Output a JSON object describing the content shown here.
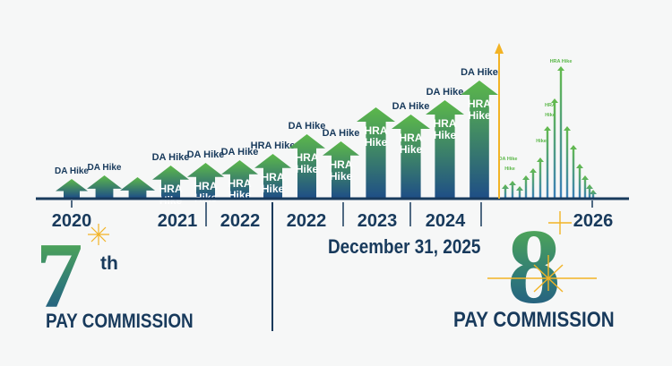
{
  "colors": {
    "navy": "#183a5c",
    "green": "#5cb84a",
    "blue": "#1f4f86",
    "gold": "#f2b325"
  },
  "arrows": [
    {
      "above": "DA Hike",
      "inside": ""
    },
    {
      "above": "DA Hike",
      "inside": ""
    },
    {
      "above": "",
      "inside": ""
    },
    {
      "above": "DA Hike",
      "inside": "HRA Hike"
    },
    {
      "above": "DA Hike",
      "inside": "HRA Hike"
    },
    {
      "above": "DA Hike",
      "inside": "HRA Hike"
    },
    {
      "above": "HRA Hike",
      "inside": "HRA Hike"
    },
    {
      "above": "DA Hike",
      "inside": "HRA Hike"
    },
    {
      "above": "DA Hike",
      "inside": "HRA Hike"
    },
    {
      "above": "",
      "inside": "HRA Hike"
    },
    {
      "above": "DA Hike",
      "inside": "HRA Hike"
    },
    {
      "above": "DA Hike",
      "inside": "HRA Hike"
    },
    {
      "above": "DA Hike",
      "inside": "HRA Hike"
    }
  ],
  "small_labels": [
    "HRA Hike",
    "HRA",
    "Hike",
    "Hike",
    "DA Hike",
    "Hike"
  ],
  "years": [
    "2020",
    "2021",
    "2022",
    "2022",
    "2023",
    "2024",
    "2026"
  ],
  "left": {
    "number": "7",
    "suffix": "th",
    "title": "PAY COMMISSION"
  },
  "right": {
    "number": "8",
    "title": "PAY COMMISSION",
    "date": "December 31, 2025"
  }
}
